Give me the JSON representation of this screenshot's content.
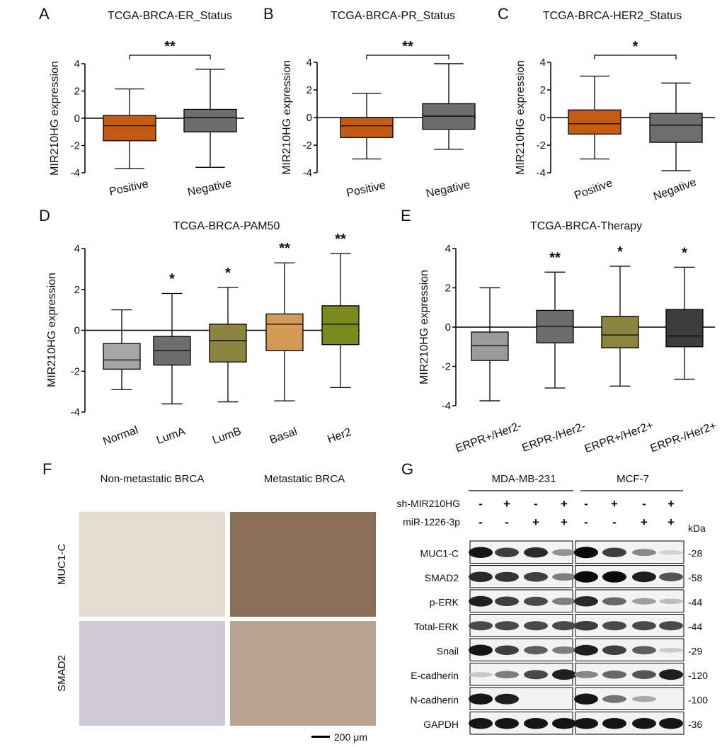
{
  "chart_data": [
    {
      "type": "box",
      "panel_letter": "A",
      "title": "TCGA-BRCA-ER_Status",
      "xlabel": "",
      "ylabel": "MIR210HG expression",
      "ylim": [
        -4,
        4
      ],
      "yticks": [
        "4",
        "2",
        "0",
        "-2",
        "-4"
      ],
      "categories": [
        "Positive",
        "Negative"
      ],
      "boxes": [
        {
          "name": "Positive",
          "min": -3.7,
          "q1": -1.65,
          "median": -0.55,
          "q3": 0.2,
          "max": 2.15,
          "color": "#c55a11"
        },
        {
          "name": "Negative",
          "min": -3.6,
          "q1": -1.0,
          "median": 0.05,
          "q3": 0.65,
          "max": 3.6,
          "color": "#6e6e6e"
        }
      ],
      "significance": [
        {
          "from": 0,
          "to": 1,
          "label": "**"
        }
      ]
    },
    {
      "type": "box",
      "panel_letter": "B",
      "title": "TCGA-BRCA-PR_Status",
      "xlabel": "",
      "ylabel": "MIR210HG expression",
      "ylim": [
        -4,
        4
      ],
      "yticks": [
        "4",
        "2",
        "0",
        "-2",
        "-4"
      ],
      "categories": [
        "Positive",
        "Negative"
      ],
      "boxes": [
        {
          "name": "Positive",
          "min": -3.0,
          "q1": -1.45,
          "median": -0.6,
          "q3": 0.0,
          "max": 1.75,
          "color": "#c55a11"
        },
        {
          "name": "Negative",
          "min": -2.3,
          "q1": -0.85,
          "median": 0.1,
          "q3": 1.0,
          "max": 3.9,
          "color": "#6e6e6e"
        }
      ],
      "significance": [
        {
          "from": 0,
          "to": 1,
          "label": "**"
        }
      ]
    },
    {
      "type": "box",
      "panel_letter": "C",
      "title": "TCGA-BRCA-HER2_Status",
      "xlabel": "",
      "ylabel": "MIR210HG expression",
      "ylim": [
        -4,
        4
      ],
      "yticks": [
        "4",
        "2",
        "0",
        "-2",
        "-4"
      ],
      "categories": [
        "Positive",
        "Negative"
      ],
      "boxes": [
        {
          "name": "Positive",
          "min": -3.0,
          "q1": -1.2,
          "median": -0.45,
          "q3": 0.55,
          "max": 3.0,
          "color": "#c55a11"
        },
        {
          "name": "Negative",
          "min": -3.85,
          "q1": -1.8,
          "median": -0.55,
          "q3": 0.3,
          "max": 2.5,
          "color": "#6e6e6e"
        }
      ],
      "significance": [
        {
          "from": 0,
          "to": 1,
          "label": "*"
        }
      ]
    },
    {
      "type": "box",
      "panel_letter": "D",
      "title": "TCGA-BRCA-PAM50",
      "xlabel": "",
      "ylabel": "MIR210HG expression",
      "ylim": [
        -4,
        4
      ],
      "yticks": [
        "4",
        "2",
        "0",
        "-2",
        "-4"
      ],
      "categories": [
        "Normal",
        "LumA",
        "LumB",
        "Basal",
        "Her2"
      ],
      "boxes": [
        {
          "name": "Normal",
          "min": -2.9,
          "q1": -1.9,
          "median": -1.45,
          "q3": -0.65,
          "max": 1.0,
          "color": "#a6a6a6"
        },
        {
          "name": "LumA",
          "min": -3.6,
          "q1": -1.7,
          "median": -1.0,
          "q3": -0.3,
          "max": 1.8,
          "color": "#6e6e6e",
          "sig": "*"
        },
        {
          "name": "LumB",
          "min": -3.5,
          "q1": -1.55,
          "median": -0.5,
          "q3": 0.3,
          "max": 2.1,
          "color": "#8c8540",
          "sig": "*"
        },
        {
          "name": "Basal",
          "min": -3.45,
          "q1": -1.0,
          "median": 0.3,
          "q3": 0.8,
          "max": 3.3,
          "color": "#d49a58",
          "sig": "**"
        },
        {
          "name": "Her2",
          "min": -2.8,
          "q1": -0.7,
          "median": 0.3,
          "q3": 1.2,
          "max": 3.75,
          "color": "#7b8a1e",
          "sig": "**"
        }
      ]
    },
    {
      "type": "box",
      "panel_letter": "E",
      "title": "TCGA-BRCA-Therapy",
      "xlabel": "",
      "ylabel": "MIR210HG expression",
      "ylim": [
        -4,
        4
      ],
      "yticks": [
        "4",
        "2",
        "0",
        "-2",
        "-4"
      ],
      "categories": [
        "ERPR+/Her2-",
        "ERPR-/Her2-",
        "ERPR+/Her2+",
        "ERPR-/Her2+"
      ],
      "boxes": [
        {
          "name": "ERPR+/Her2-",
          "min": -3.75,
          "q1": -1.7,
          "median": -0.95,
          "q3": -0.25,
          "max": 2.0,
          "color": "#9b9b9b"
        },
        {
          "name": "ERPR-/Her2-",
          "min": -3.1,
          "q1": -0.8,
          "median": 0.05,
          "q3": 0.85,
          "max": 2.8,
          "color": "#6e6e6e",
          "sig": "**"
        },
        {
          "name": "ERPR+/Her2+",
          "min": -3.0,
          "q1": -1.05,
          "median": -0.4,
          "q3": 0.55,
          "max": 3.1,
          "color": "#8c8540",
          "sig": "*"
        },
        {
          "name": "ERPR-/Her2+",
          "min": -2.65,
          "q1": -1.0,
          "median": -0.45,
          "q3": 0.9,
          "max": 3.05,
          "color": "#3c3c3c",
          "sig": "*"
        }
      ]
    }
  ],
  "panel_f": {
    "letter": "F",
    "col_labels": [
      "Non-metastatic BRCA",
      "Metastatic BRCA"
    ],
    "row_labels": [
      "MUC1-C",
      "SMAD2"
    ],
    "scale_bar_label": "200 μm"
  },
  "panel_g": {
    "letter": "G",
    "cell_lines": [
      "MDA-MB-231",
      "MCF-7"
    ],
    "conditions": [
      {
        "name": "sh-MIR210HG",
        "values": [
          "-",
          "+",
          "-",
          "+",
          "-",
          "+",
          "-",
          "+"
        ]
      },
      {
        "name": "miR-1226-3p",
        "values": [
          "-",
          "-",
          "+",
          "+",
          "-",
          "-",
          "+",
          "+"
        ]
      }
    ],
    "kda_header": "kDa",
    "blots": [
      {
        "name": "MUC1-C",
        "kda": "-28",
        "intensity": [
          0.95,
          0.75,
          0.85,
          0.35,
          1.0,
          0.75,
          0.4,
          0.05
        ]
      },
      {
        "name": "SMAD2",
        "kda": "-58",
        "intensity": [
          0.85,
          0.8,
          0.75,
          0.45,
          1.0,
          1.0,
          0.9,
          0.65
        ]
      },
      {
        "name": "p-ERK",
        "kda": "-44",
        "intensity": [
          0.9,
          0.75,
          0.7,
          0.45,
          0.85,
          0.55,
          0.3,
          0.15
        ]
      },
      {
        "name": "Total-ERK",
        "kda": "-44",
        "intensity": [
          0.7,
          0.7,
          0.7,
          0.7,
          0.75,
          0.7,
          0.7,
          0.7
        ]
      },
      {
        "name": "Snail",
        "kda": "-29",
        "intensity": [
          0.95,
          0.75,
          0.6,
          0.45,
          0.9,
          0.75,
          0.6,
          0.08
        ]
      },
      {
        "name": "E-cadherin",
        "kda": "-120",
        "intensity": [
          0.1,
          0.45,
          0.7,
          0.9,
          0.4,
          0.55,
          0.65,
          0.9
        ]
      },
      {
        "name": "N-cadherin",
        "kda": "-100",
        "intensity": [
          0.95,
          0.9,
          0.0,
          0.0,
          0.95,
          0.5,
          0.25,
          0.0
        ]
      },
      {
        "name": "GAPDH",
        "kda": "-36",
        "intensity": [
          0.95,
          0.95,
          0.95,
          0.95,
          0.95,
          0.95,
          0.95,
          0.95
        ]
      }
    ]
  }
}
